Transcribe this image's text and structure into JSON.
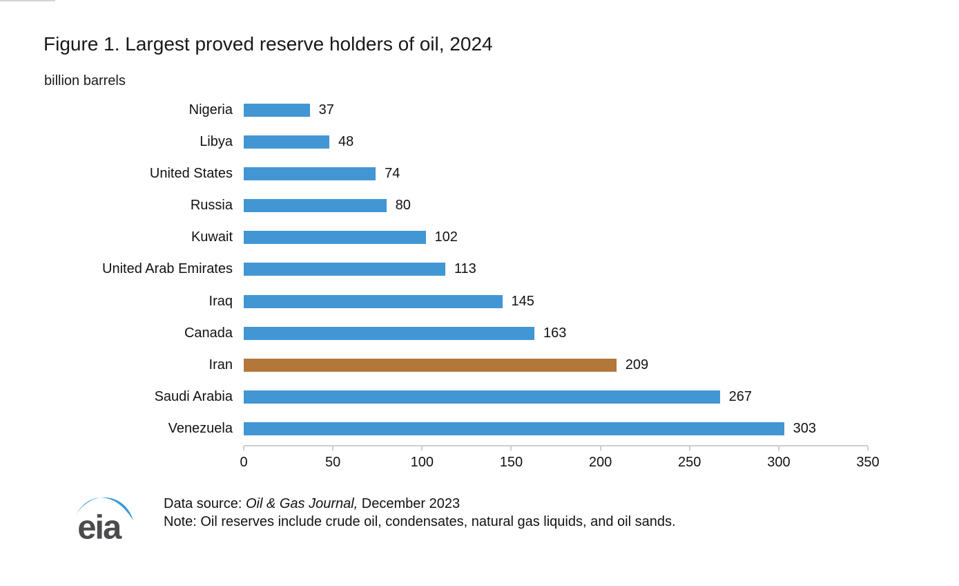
{
  "chart_data": {
    "type": "bar",
    "orientation": "horizontal",
    "title": "Figure 1. Largest proved reserve holders of oil, 2024",
    "unit_label": "billion barrels",
    "xlabel": "billion barrels",
    "ylabel": "",
    "categories": [
      "Nigeria",
      "Libya",
      "United States",
      "Russia",
      "Kuwait",
      "United Arab Emirates",
      "Iraq",
      "Canada",
      "Iran",
      "Saudi Arabia",
      "Venezuela"
    ],
    "values": [
      37,
      48,
      74,
      80,
      102,
      113,
      145,
      163,
      209,
      267,
      303
    ],
    "x_ticks": [
      0,
      50,
      100,
      150,
      200,
      250,
      300,
      350
    ],
    "xlim": [
      0,
      350
    ],
    "grid": false,
    "legend": false,
    "value_labels": true,
    "bar_color": "#4296D3",
    "highlight_category": "Iran",
    "highlight_color": "#B27739"
  },
  "footer": {
    "logo_text": "eia",
    "data_source_prefix": "Data source: ",
    "data_source_italic": "Oil & Gas Journal,",
    "data_source_suffix": " December 2023",
    "note": "Note: Oil reserves include crude oil, condensates, natural gas liquids, and oil sands."
  },
  "colors": {
    "axis_line": "#CDCDCD",
    "text": "#111111",
    "logo_gray": "#4B4B4D",
    "logo_blue": "#3A9AD4"
  }
}
